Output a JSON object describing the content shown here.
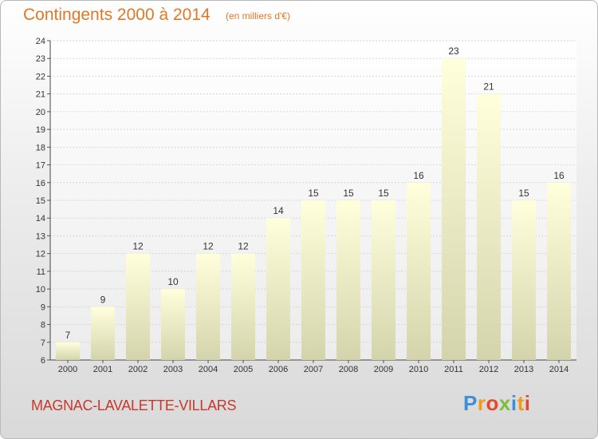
{
  "header": {
    "title": "Contingents 2000 à 2014",
    "subtitle": "(en milliers d'€)"
  },
  "footer": {
    "commune": "MAGNAC-LAVALETTE-VILLARS",
    "logo": [
      "P",
      "r",
      "o",
      "x",
      "i",
      "t",
      "i"
    ]
  },
  "colors": {
    "title": "#e07828",
    "commune": "#c8382a",
    "bar_top": "#ffffdc",
    "bar_bottom": "#d4d4ac"
  },
  "chart_data": {
    "type": "bar",
    "title": "Contingents 2000 à 2014",
    "subtitle": "(en milliers d'€)",
    "xlabel": "",
    "ylabel": "",
    "ylim": [
      6,
      24
    ],
    "yticks": [
      6,
      7,
      8,
      9,
      10,
      11,
      12,
      13,
      14,
      15,
      16,
      17,
      18,
      19,
      20,
      21,
      22,
      23,
      24
    ],
    "grid": true,
    "categories": [
      "2000",
      "2001",
      "2002",
      "2003",
      "2004",
      "2005",
      "2006",
      "2007",
      "2008",
      "2009",
      "2010",
      "2011",
      "2012",
      "2013",
      "2014"
    ],
    "values": [
      7,
      9,
      12,
      10,
      12,
      12,
      14,
      15,
      15,
      15,
      16,
      23,
      21,
      15,
      16
    ]
  }
}
